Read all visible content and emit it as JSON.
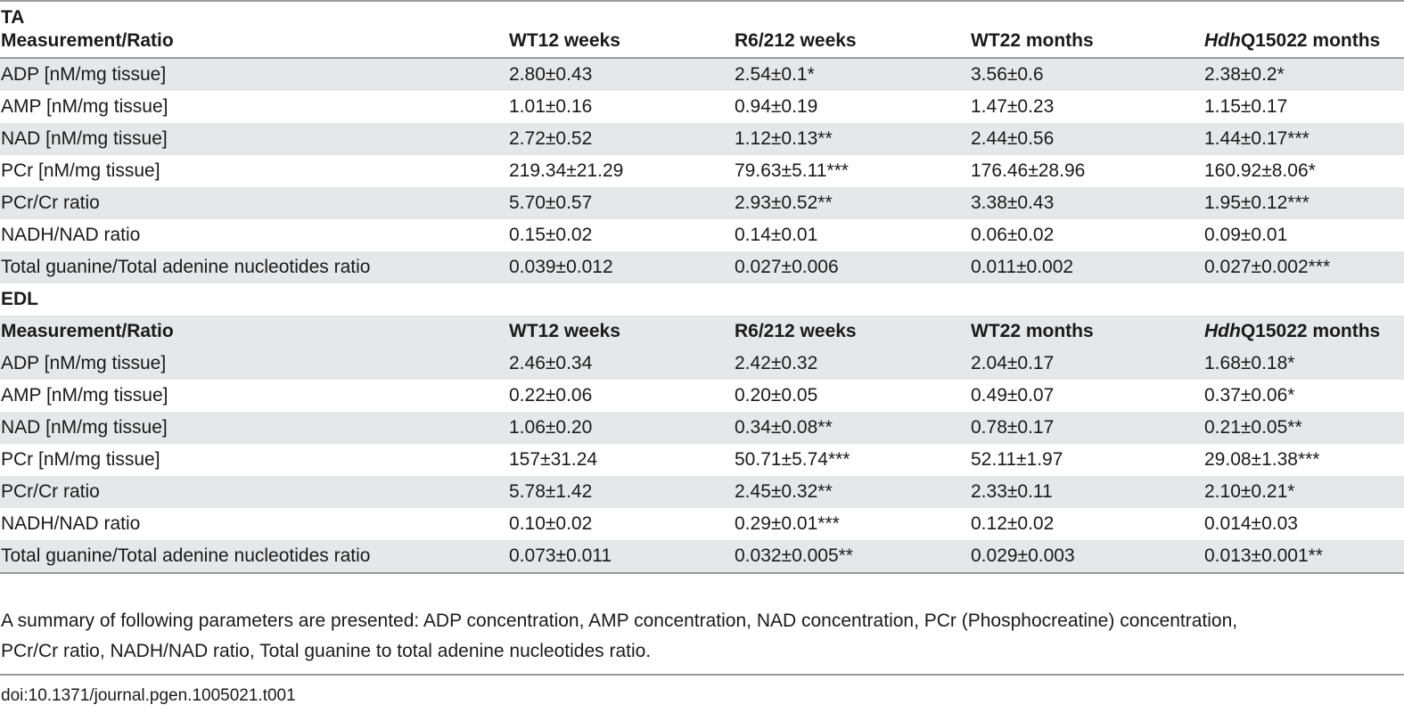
{
  "sections": [
    {
      "title": "TA",
      "headers": [
        "Measurement/Ratio",
        "WT12 weeks",
        "R6/212 weeks",
        "WT22 months",
        "HdhQ15022 months"
      ],
      "rows": [
        [
          "ADP [nM/mg tissue]",
          "2.80±0.43",
          "2.54±0.1*",
          "3.56±0.6",
          "2.38±0.2*"
        ],
        [
          "AMP [nM/mg tissue]",
          "1.01±0.16",
          "0.94±0.19",
          "1.47±0.23",
          "1.15±0.17"
        ],
        [
          "NAD [nM/mg tissue]",
          "2.72±0.52",
          "1.12±0.13**",
          "2.44±0.56",
          "1.44±0.17***"
        ],
        [
          "PCr [nM/mg tissue]",
          "219.34±21.29",
          "79.63±5.11***",
          "176.46±28.96",
          "160.92±8.06*"
        ],
        [
          "PCr/Cr ratio",
          "5.70±0.57",
          "2.93±0.52**",
          "3.38±0.43",
          "1.95±0.12***"
        ],
        [
          "NADH/NAD ratio",
          "0.15±0.02",
          "0.14±0.01",
          "0.06±0.02",
          "0.09±0.01"
        ],
        [
          "Total guanine/Total adenine nucleotides ratio",
          "0.039±0.012",
          "0.027±0.006",
          "0.011±0.002",
          "0.027±0.002***"
        ]
      ]
    },
    {
      "title": "EDL",
      "headers": [
        "Measurement/Ratio",
        "WT12 weeks",
        "R6/212 weeks",
        "WT22 months",
        "HdhQ15022 months"
      ],
      "rows": [
        [
          "ADP [nM/mg tissue]",
          "2.46±0.34",
          "2.42±0.32",
          "2.04±0.17",
          "1.68±0.18*"
        ],
        [
          "AMP [nM/mg tissue]",
          "0.22±0.06",
          "0.20±0.05",
          "0.49±0.07",
          "0.37±0.06*"
        ],
        [
          "NAD [nM/mg tissue]",
          "1.06±0.20",
          "0.34±0.08**",
          "0.78±0.17",
          "0.21±0.05**"
        ],
        [
          "PCr [nM/mg tissue]",
          "157±31.24",
          "50.71±5.74***",
          "52.11±1.97",
          "29.08±1.38***"
        ],
        [
          "PCr/Cr ratio",
          "5.78±1.42",
          "2.45±0.32**",
          "2.33±0.11",
          "2.10±0.21*"
        ],
        [
          "NADH/NAD ratio",
          "0.10±0.02",
          "0.29±0.01***",
          "0.12±0.02",
          "0.014±0.03"
        ],
        [
          "Total guanine/Total adenine nucleotides ratio",
          "0.073±0.011",
          "0.032±0.005**",
          "0.029±0.003",
          "0.013±0.001**"
        ]
      ]
    }
  ],
  "last_header_prefix_italic": "Hdh",
  "last_header_suffix": "Q15022 months",
  "caption_line1": "A summary of following parameters are presented: ADP concentration, AMP concentration, NAD concentration, PCr (Phosphocreatine) concentration,",
  "caption_line2": "PCr/Cr ratio, NADH/NAD ratio, Total guanine to total adenine nucleotides ratio.",
  "doi": "doi:10.1371/journal.pgen.1005021.t001",
  "colors": {
    "row_shade": "#e6e7e8",
    "rule": "#9a9a9a",
    "text": "#1a1a1a"
  }
}
